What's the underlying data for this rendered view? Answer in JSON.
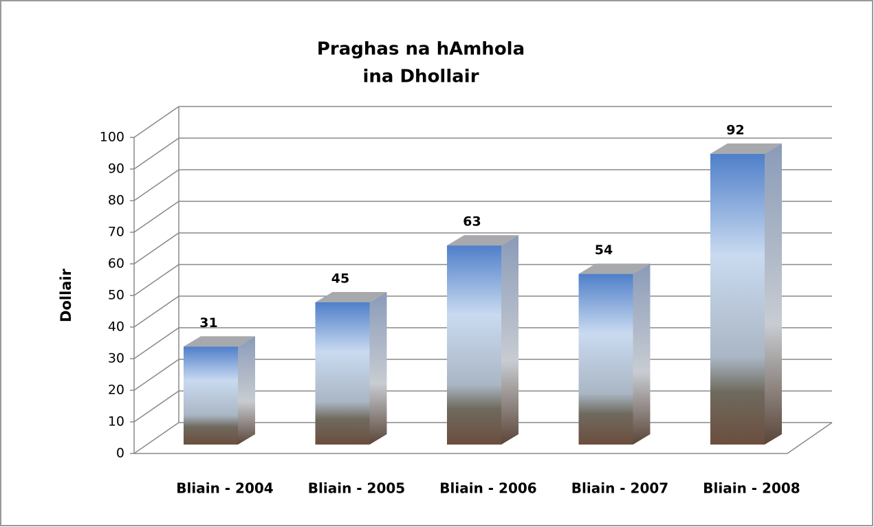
{
  "chart_data": {
    "type": "bar3d",
    "title": [
      "Praghas na hAmhola",
      "ina Dhollair"
    ],
    "y_label": "Dollair",
    "categories": [
      "Bliain - 2004",
      "Bliain - 2005",
      "Bliain - 2006",
      "Bliain - 2007",
      "Bliain - 2008"
    ],
    "values": [
      31,
      45,
      63,
      54,
      92
    ],
    "ylim": [
      0,
      100
    ],
    "yticks": [
      0,
      10,
      20,
      30,
      40,
      50,
      60,
      70,
      80,
      90,
      100
    ],
    "grid": true
  }
}
